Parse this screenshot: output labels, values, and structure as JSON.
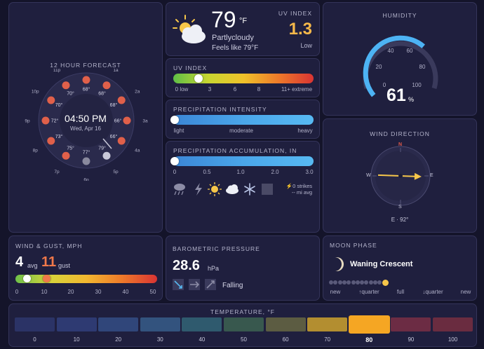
{
  "forecast": {
    "title": "12 HOUR FORECAST",
    "time": "04:50 PM",
    "date": "Wed, Apr 16",
    "hours": [
      "12a",
      "1a",
      "2a",
      "3a",
      "4a",
      "5p",
      "6p",
      "7p",
      "8p",
      "9p",
      "10p",
      "11p"
    ],
    "temps": [
      "68°",
      "68°",
      "68°",
      "66°",
      "66°",
      "79°",
      "77°",
      "75°",
      "73°",
      "72°",
      "70°",
      "70°"
    ]
  },
  "current": {
    "temp": "79",
    "unit": "°F",
    "condition": "Partlycloudy",
    "feels_like": "Feels like 79°F",
    "uv_label": "UV INDEX",
    "uv_value": "1.3",
    "uv_level": "Low",
    "icon": "partly-cloudy-sun-icon"
  },
  "uv": {
    "title": "UV INDEX",
    "value": 1.3,
    "ticks": [
      "0 low",
      "3",
      "6",
      "8",
      "11+ extreme"
    ]
  },
  "precip_intensity": {
    "title": "PRECIPITATION INTENSITY",
    "ticks": [
      "light",
      "moderate",
      "heavy"
    ]
  },
  "precip_accum": {
    "title": "PRECIPITATION ACCUMULATION, IN",
    "ticks": [
      "0",
      "0.5",
      "1.0",
      "2.0",
      "3.0"
    ],
    "strikes": "⚡0 strikes",
    "distance": "-- mi avg",
    "icons": [
      "rain-cloud-icon",
      "lightning-icon",
      "sun-icon",
      "cloud-icon",
      "snowflake-icon",
      "fog-icon"
    ]
  },
  "humidity": {
    "title": "HUMIDITY",
    "value": "61",
    "unit": "%",
    "ticks": [
      "0",
      "20",
      "40",
      "60",
      "80",
      "100"
    ]
  },
  "wind_dir": {
    "title": "WIND DIRECTION",
    "readout": "E · 92°",
    "degrees": 92,
    "cardinals": [
      "N",
      "E",
      "S",
      "W"
    ]
  },
  "wind": {
    "title": "WIND & GUST, MPH",
    "avg": "4",
    "avg_label": "avg",
    "gust": "11",
    "gust_label": "gust",
    "ticks": [
      "0",
      "10",
      "20",
      "30",
      "40",
      "50"
    ]
  },
  "pressure": {
    "title": "BAROMETRIC PRESSURE",
    "value": "28.6",
    "unit": "hPa",
    "trend": "Falling",
    "icons": [
      "pressure-down-icon",
      "pressure-steady-icon",
      "pressure-up-icon"
    ]
  },
  "moon": {
    "title": "MOON PHASE",
    "phase": "Waning Crescent",
    "labels": [
      "new",
      "↑quarter",
      "full",
      "↓quarter",
      "new"
    ]
  },
  "temperature": {
    "title": "TEMPERATURE, °F",
    "labels": [
      "0",
      "10",
      "20",
      "30",
      "40",
      "50",
      "60",
      "70",
      "80",
      "90",
      "100"
    ],
    "active": "80",
    "colors": [
      "#2b3366",
      "#2e3a72",
      "#30467a",
      "#33537e",
      "#2f5a6e",
      "#38584e",
      "#5c5c42",
      "#b38e30",
      "#f5a623",
      "#6c2c44",
      "#6a2c40"
    ]
  }
}
